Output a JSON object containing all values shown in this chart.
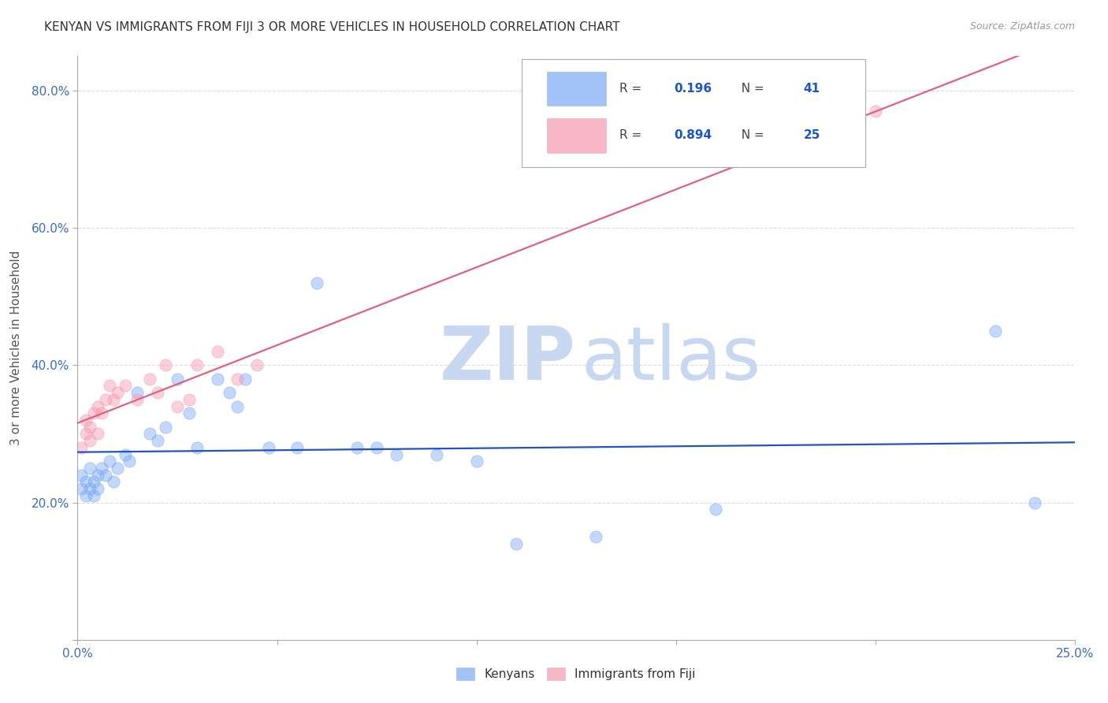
{
  "title": "KENYAN VS IMMIGRANTS FROM FIJI 3 OR MORE VEHICLES IN HOUSEHOLD CORRELATION CHART",
  "source": "Source: ZipAtlas.com",
  "ylabel_label": "3 or more Vehicles in Household",
  "xlim": [
    0.0,
    0.25
  ],
  "ylim": [
    0.0,
    0.85
  ],
  "xticks": [
    0.0,
    0.05,
    0.1,
    0.15,
    0.2,
    0.25
  ],
  "yticks": [
    0.0,
    0.2,
    0.4,
    0.6,
    0.8
  ],
  "xticklabels": [
    "0.0%",
    "",
    "",
    "",
    "",
    "25.0%"
  ],
  "yticklabels": [
    "",
    "20.0%",
    "40.0%",
    "60.0%",
    "80.0%"
  ],
  "background_color": "#ffffff",
  "grid_color": "#dddddd",
  "watermark_zip": "ZIP",
  "watermark_atlas": "atlas",
  "watermark_color": "#c8d8f0",
  "legend_R1": "0.196",
  "legend_N1": "41",
  "legend_R2": "0.894",
  "legend_N2": "25",
  "color_kenyan": "#7aaaf5",
  "color_fiji": "#f599b0",
  "line_color_kenyan": "#2255bb",
  "line_color_fiji": "#e06080",
  "kenyan_x": [
    0.001,
    0.001,
    0.002,
    0.002,
    0.003,
    0.003,
    0.004,
    0.004,
    0.005,
    0.005,
    0.006,
    0.007,
    0.008,
    0.009,
    0.01,
    0.012,
    0.013,
    0.015,
    0.018,
    0.02,
    0.022,
    0.025,
    0.028,
    0.03,
    0.035,
    0.038,
    0.04,
    0.042,
    0.048,
    0.055,
    0.06,
    0.07,
    0.075,
    0.08,
    0.09,
    0.1,
    0.11,
    0.13,
    0.16,
    0.23,
    0.24
  ],
  "kenyan_y": [
    0.22,
    0.24,
    0.21,
    0.23,
    0.25,
    0.22,
    0.21,
    0.23,
    0.24,
    0.22,
    0.25,
    0.24,
    0.26,
    0.23,
    0.25,
    0.27,
    0.26,
    0.36,
    0.3,
    0.29,
    0.31,
    0.38,
    0.33,
    0.28,
    0.38,
    0.36,
    0.34,
    0.38,
    0.28,
    0.28,
    0.52,
    0.28,
    0.28,
    0.27,
    0.27,
    0.26,
    0.14,
    0.15,
    0.19,
    0.45,
    0.2
  ],
  "fiji_x": [
    0.001,
    0.002,
    0.002,
    0.003,
    0.003,
    0.004,
    0.005,
    0.005,
    0.006,
    0.007,
    0.008,
    0.009,
    0.01,
    0.012,
    0.015,
    0.018,
    0.02,
    0.022,
    0.025,
    0.028,
    0.03,
    0.035,
    0.04,
    0.045,
    0.2
  ],
  "fiji_y": [
    0.28,
    0.3,
    0.32,
    0.29,
    0.31,
    0.33,
    0.34,
    0.3,
    0.33,
    0.35,
    0.37,
    0.35,
    0.36,
    0.37,
    0.35,
    0.38,
    0.36,
    0.4,
    0.34,
    0.35,
    0.4,
    0.42,
    0.38,
    0.4,
    0.77
  ],
  "marker_size": 120,
  "marker_alpha": 0.45,
  "line_width": 1.6
}
